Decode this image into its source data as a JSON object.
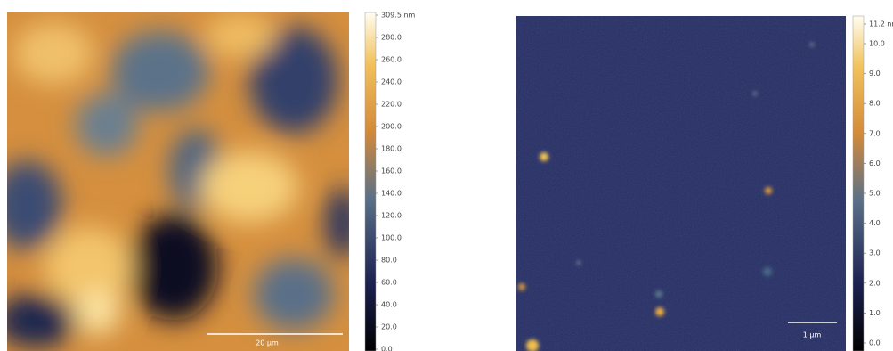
{
  "panels": [
    {
      "colorbar": {
        "labels": [
          "309.5 nm",
          "280.0",
          "260.0",
          "240.0",
          "220.0",
          "200.0",
          "180.0",
          "160.0",
          "140.0",
          "120.0",
          "100.0",
          "80.0",
          "60.0",
          "40.0",
          "20.0",
          "0.0"
        ]
      },
      "scale_bar": "20 µm"
    },
    {
      "colorbar": {
        "labels": [
          "11.2 nm",
          "10.0",
          "9.0",
          "8.0",
          "7.0",
          "6.0",
          "5.0",
          "4.0",
          "3.0",
          "2.0",
          "1.0",
          "0.0"
        ]
      },
      "scale_bar": "1 µm"
    }
  ]
}
